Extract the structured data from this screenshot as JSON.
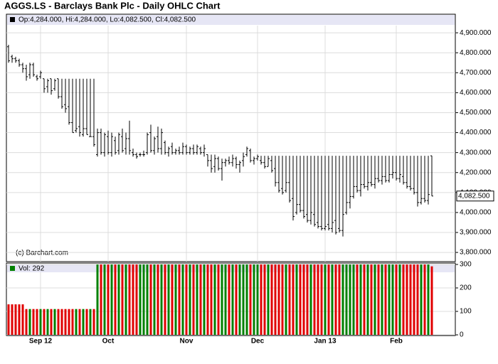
{
  "chart_data": [
    {
      "type": "ohlc",
      "title": "AGGS.LS - Barclays Bank Plc - Daily OHLC Chart",
      "header": "Op:4,284.000, Hi:4,284.000, Lo:4,082.500, Cl:4,082.500",
      "credit": "(c) Barchart.com",
      "color": "#000000",
      "last_price_label": "4,082.500",
      "grid": true,
      "ylim": [
        3754,
        4936
      ],
      "yticks": [
        {
          "value": 3800,
          "label": "3,800.000"
        },
        {
          "value": 3900,
          "label": "3,900.000"
        },
        {
          "value": 4000,
          "label": "4,000.000"
        },
        {
          "value": 4100,
          "label": "4,100.000"
        },
        {
          "value": 4200,
          "label": "4,200.000"
        },
        {
          "value": 4300,
          "label": "4,300.000"
        },
        {
          "value": 4400,
          "label": "4,400.000"
        },
        {
          "value": 4500,
          "label": "4,500.000"
        },
        {
          "value": 4600,
          "label": "4,600.000"
        },
        {
          "value": 4700,
          "label": "4,700.000"
        },
        {
          "value": 4800,
          "label": "4,800.000"
        },
        {
          "value": 4900,
          "label": "4,900.000"
        }
      ],
      "categories": [
        null,
        null,
        null,
        null,
        null,
        null,
        null,
        null,
        null,
        "Sep 12",
        null,
        null,
        null,
        null,
        null,
        null,
        null,
        null,
        null,
        null,
        null,
        null,
        null,
        null,
        null,
        null,
        null,
        null,
        "Oct",
        null,
        null,
        null,
        null,
        null,
        null,
        null,
        null,
        null,
        null,
        null,
        null,
        null,
        null,
        null,
        null,
        null,
        null,
        null,
        null,
        null,
        "Nov",
        null,
        null,
        null,
        null,
        null,
        null,
        null,
        null,
        null,
        null,
        null,
        null,
        null,
        null,
        null,
        null,
        null,
        null,
        null,
        "Dec",
        null,
        null,
        null,
        null,
        null,
        null,
        null,
        null,
        null,
        null,
        null,
        null,
        null,
        null,
        null,
        null,
        null,
        null,
        "Jan 13",
        null,
        null,
        null,
        null,
        null,
        null,
        null,
        null,
        null,
        null,
        null,
        null,
        null,
        null,
        null,
        null,
        null,
        null,
        null,
        "Feb",
        null,
        null,
        null,
        null,
        null,
        null,
        null,
        null,
        null,
        null
      ],
      "open": [
        4830,
        4780,
        4770,
        4760,
        4740,
        4720,
        4690,
        4740,
        4680,
        4680,
        4670,
        4630,
        4670,
        4620,
        4670,
        4580,
        4540,
        4530,
        4450,
        4410,
        4430,
        4390,
        4420,
        4380,
        4380,
        4290,
        4400,
        4300,
        4380,
        4300,
        4360,
        4310,
        4380,
        4320,
        4370,
        4300,
        4290,
        4290,
        4290,
        4300,
        4400,
        4310,
        4380,
        4320,
        4350,
        4300,
        4330,
        4300,
        4310,
        4300,
        4330,
        4300,
        4320,
        4300,
        4320,
        4300,
        4290,
        4260,
        4230,
        4270,
        4220,
        4250,
        4260,
        4250,
        4270,
        4240,
        4260,
        4290,
        4310,
        4260,
        4270,
        4260,
        4250,
        4230,
        4260,
        4220,
        4150,
        4120,
        4110,
        4150,
        4070,
        4000,
        4040,
        4010,
        3990,
        3960,
        3990,
        3950,
        3930,
        3920,
        3940,
        3920,
        3960,
        3920,
        3910,
        4000,
        4050,
        4080,
        4130,
        4110,
        4140,
        4130,
        4150,
        4140,
        4170,
        4160,
        4180,
        4160,
        4190,
        4200,
        4170,
        4180,
        4150,
        4130,
        4120,
        4100,
        4050,
        4070,
        4060,
        4284
      ],
      "high": [
        4840,
        4790,
        4780,
        4770,
        4750,
        4740,
        4750,
        4750,
        4690,
        4710,
        4670,
        4670,
        4670,
        4670,
        4670,
        4670,
        4670,
        4670,
        4670,
        4670,
        4670,
        4670,
        4670,
        4670,
        4670,
        4420,
        4420,
        4400,
        4410,
        4400,
        4380,
        4400,
        4420,
        4400,
        4460,
        4320,
        4300,
        4300,
        4310,
        4400,
        4440,
        4380,
        4430,
        4420,
        4360,
        4330,
        4350,
        4320,
        4330,
        4350,
        4340,
        4330,
        4340,
        4340,
        4330,
        4340,
        4290,
        4290,
        4290,
        4280,
        4270,
        4270,
        4280,
        4290,
        4280,
        4260,
        4300,
        4330,
        4320,
        4280,
        4290,
        4284,
        4284,
        4284,
        4284,
        4284,
        4284,
        4284,
        4284,
        4284,
        4284,
        4284,
        4284,
        4284,
        4284,
        4284,
        4284,
        4284,
        4284,
        4284,
        4284,
        4284,
        4284,
        4284,
        4284,
        4284,
        4284,
        4284,
        4284,
        4284,
        4284,
        4284,
        4284,
        4284,
        4284,
        4284,
        4284,
        4284,
        4284,
        4284,
        4284,
        4284,
        4284,
        4284,
        4284,
        4284,
        4284,
        4284,
        4284,
        4284
      ],
      "low": [
        4750,
        4750,
        4750,
        4730,
        4700,
        4660,
        4670,
        4680,
        4660,
        4670,
        4600,
        4600,
        4590,
        4610,
        4570,
        4520,
        4500,
        4440,
        4400,
        4400,
        4380,
        4380,
        4390,
        4380,
        4330,
        4280,
        4290,
        4280,
        4290,
        4280,
        4290,
        4290,
        4300,
        4290,
        4290,
        4280,
        4270,
        4280,
        4280,
        4290,
        4300,
        4290,
        4300,
        4290,
        4290,
        4280,
        4290,
        4290,
        4290,
        4290,
        4290,
        4290,
        4290,
        4290,
        4290,
        4280,
        4230,
        4200,
        4200,
        4210,
        4160,
        4230,
        4240,
        4230,
        4220,
        4200,
        4230,
        4280,
        4250,
        4240,
        4260,
        4240,
        4220,
        4230,
        4200,
        4130,
        4100,
        4090,
        4100,
        4050,
        3960,
        3990,
        4000,
        3970,
        3950,
        3940,
        3930,
        3920,
        3910,
        3910,
        3910,
        3900,
        3890,
        3900,
        3880,
        3990,
        4020,
        4070,
        4100,
        4080,
        4120,
        4110,
        4130,
        4120,
        4150,
        4140,
        4150,
        4150,
        4170,
        4160,
        4150,
        4140,
        4120,
        4110,
        4090,
        4030,
        4040,
        4050,
        4040,
        4082.5
      ],
      "close": [
        4760,
        4770,
        4760,
        4740,
        4720,
        4680,
        4740,
        4690,
        4670,
        4700,
        4620,
        4660,
        4610,
        4660,
        4580,
        4530,
        4520,
        4450,
        4400,
        4420,
        4400,
        4420,
        4390,
        4380,
        4340,
        4400,
        4300,
        4390,
        4300,
        4380,
        4300,
        4390,
        4310,
        4370,
        4310,
        4290,
        4280,
        4290,
        4290,
        4390,
        4310,
        4370,
        4320,
        4400,
        4300,
        4320,
        4300,
        4310,
        4300,
        4330,
        4300,
        4320,
        4300,
        4330,
        4300,
        4320,
        4260,
        4220,
        4270,
        4220,
        4250,
        4260,
        4250,
        4270,
        4240,
        4250,
        4280,
        4320,
        4260,
        4270,
        4280,
        4250,
        4230,
        4270,
        4210,
        4150,
        4110,
        4100,
        4150,
        4060,
        3980,
        4040,
        4010,
        3980,
        3960,
        4000,
        3940,
        3930,
        3920,
        3930,
        3920,
        3950,
        3900,
        3910,
        3990,
        4050,
        4080,
        4130,
        4110,
        4140,
        4130,
        4150,
        4140,
        4170,
        4160,
        4180,
        4160,
        4190,
        4200,
        4170,
        4190,
        4150,
        4130,
        4120,
        4100,
        4050,
        4070,
        4060,
        4090,
        4082.5
      ]
    },
    {
      "type": "bar",
      "header": "Vol: 292",
      "up_color": "#008000",
      "down_color": "#e00000",
      "grid": true,
      "ylim": [
        0,
        306
      ],
      "yticks": [
        0,
        100,
        200,
        300
      ],
      "values": [
        130,
        130,
        130,
        130,
        130,
        110,
        110,
        110,
        110,
        110,
        110,
        110,
        110,
        110,
        110,
        110,
        110,
        110,
        110,
        110,
        110,
        110,
        110,
        110,
        110,
        300,
        300,
        300,
        300,
        300,
        300,
        300,
        300,
        300,
        300,
        300,
        300,
        300,
        300,
        300,
        300,
        300,
        300,
        300,
        300,
        300,
        300,
        300,
        300,
        300,
        300,
        300,
        300,
        300,
        300,
        300,
        300,
        300,
        300,
        300,
        300,
        300,
        300,
        300,
        300,
        300,
        300,
        300,
        300,
        300,
        300,
        300,
        300,
        300,
        300,
        300,
        300,
        300,
        300,
        300,
        300,
        300,
        300,
        300,
        300,
        300,
        300,
        300,
        300,
        300,
        300,
        300,
        300,
        300,
        300,
        300,
        300,
        300,
        300,
        300,
        300,
        300,
        300,
        300,
        300,
        300,
        300,
        300,
        300,
        300,
        300,
        300,
        300,
        300,
        300,
        300,
        300,
        300,
        300,
        292
      ]
    }
  ]
}
